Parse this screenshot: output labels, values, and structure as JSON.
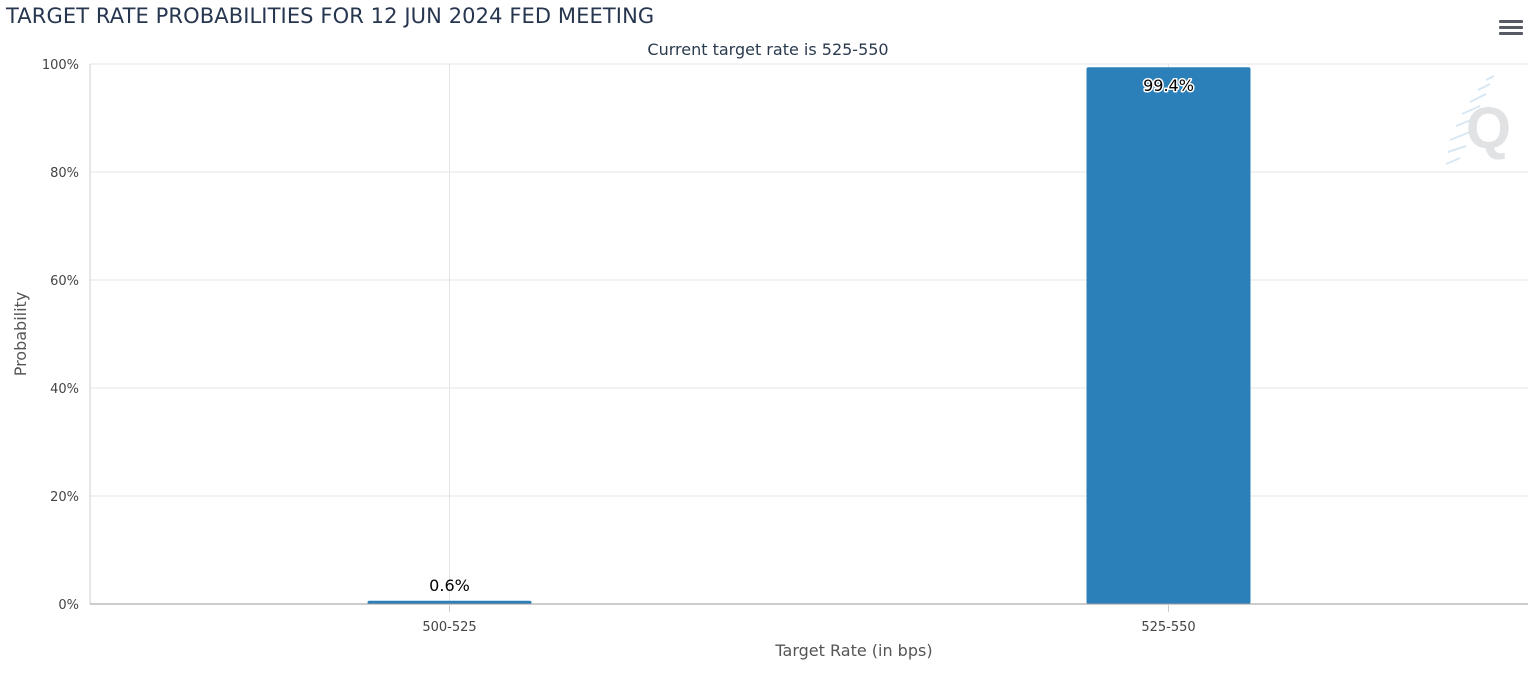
{
  "chart_title": "TARGET RATE PROBABILITIES FOR 12 JUN 2024 FED MEETING",
  "chart_subtitle": "Current target rate is 525-550",
  "menu_icon": "hamburger-menu-icon",
  "watermark_icon": "q-logo-icon",
  "colors": {
    "bar": "#2b80b9",
    "grid": "#e6e6e6",
    "axis": "#999999",
    "title": "#27364f"
  },
  "chart_data": {
    "type": "bar",
    "title": "TARGET RATE PROBABILITIES FOR 12 JUN 2024 FED MEETING",
    "subtitle": "Current target rate is 525-550",
    "categories": [
      "500-525",
      "525-550"
    ],
    "values": [
      0.6,
      99.4
    ],
    "data_labels": [
      "0.6%",
      "99.4%"
    ],
    "xlabel": "Target Rate (in bps)",
    "ylabel": "Probability",
    "ylim": [
      0,
      100
    ],
    "yticks": [
      "0%",
      "20%",
      "40%",
      "60%",
      "80%",
      "100%"
    ],
    "grid": true,
    "legend": "none"
  }
}
